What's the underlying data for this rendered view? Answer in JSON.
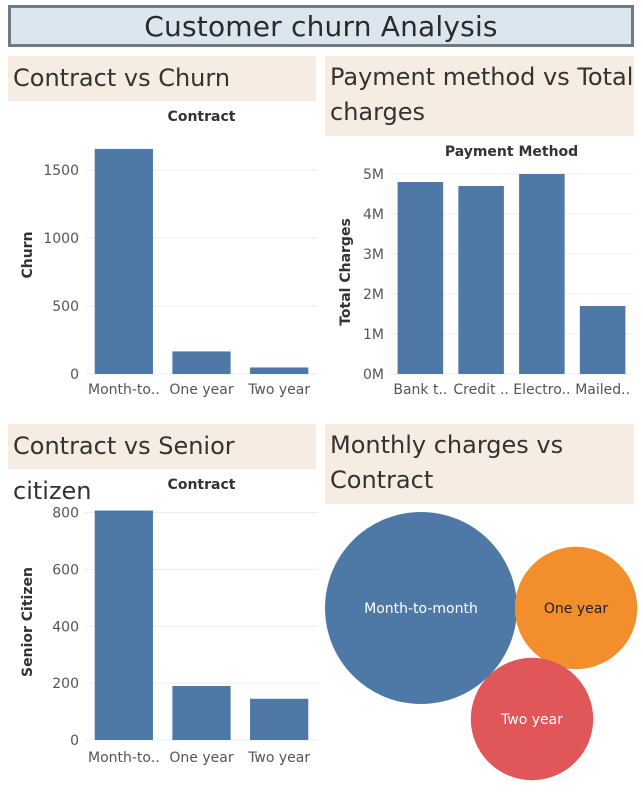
{
  "dashboard": {
    "title": "Customer churn Analysis"
  },
  "panels": [
    {
      "title": "Contract vs Churn"
    },
    {
      "title_line1": "Payment method vs Total",
      "title_line2": "charges"
    },
    {
      "title": "Contract vs Senior citizen"
    },
    {
      "title_line1": "Monthly charges vs",
      "title_line2": "Contract"
    }
  ],
  "colors": {
    "bar": "#4e79a7",
    "bubble_month_to_month": "#4e79a7",
    "bubble_one_year": "#f28e2b",
    "bubble_two_year": "#e15759"
  },
  "chart_data": [
    {
      "type": "bar",
      "title": "Contract",
      "ylabel": "Churn",
      "categories": [
        "Month-to..",
        "One year",
        "Two year"
      ],
      "values": [
        1655,
        166,
        48
      ],
      "yticks": [
        0,
        500,
        1000,
        1500
      ],
      "ylim": [
        0,
        1750
      ],
      "grid": true
    },
    {
      "type": "bar",
      "title": "Payment Method",
      "ylabel": "Total Charges",
      "categories": [
        "Bank t..",
        "Credit ..",
        "Electro..",
        "Mailed.."
      ],
      "values": [
        4800000,
        4700000,
        5000000,
        1700000
      ],
      "yticks": [
        0,
        1000000,
        2000000,
        3000000,
        4000000,
        5000000
      ],
      "ytick_labels": [
        "0M",
        "1M",
        "2M",
        "3M",
        "4M",
        "5M"
      ],
      "ylim": [
        0,
        5100000
      ],
      "grid": true
    },
    {
      "type": "bar",
      "title": "Contract",
      "ylabel": "Senior Citizen",
      "categories": [
        "Month-to..",
        "One year",
        "Two year"
      ],
      "values": [
        807,
        190,
        145
      ],
      "yticks": [
        0,
        200,
        400,
        600,
        800
      ],
      "ylim": [
        0,
        830
      ],
      "grid": true
    },
    {
      "type": "bubble",
      "categories": [
        "Month-to-month",
        "One year",
        "Two year"
      ],
      "values": [
        100,
        42,
        42
      ]
    }
  ]
}
